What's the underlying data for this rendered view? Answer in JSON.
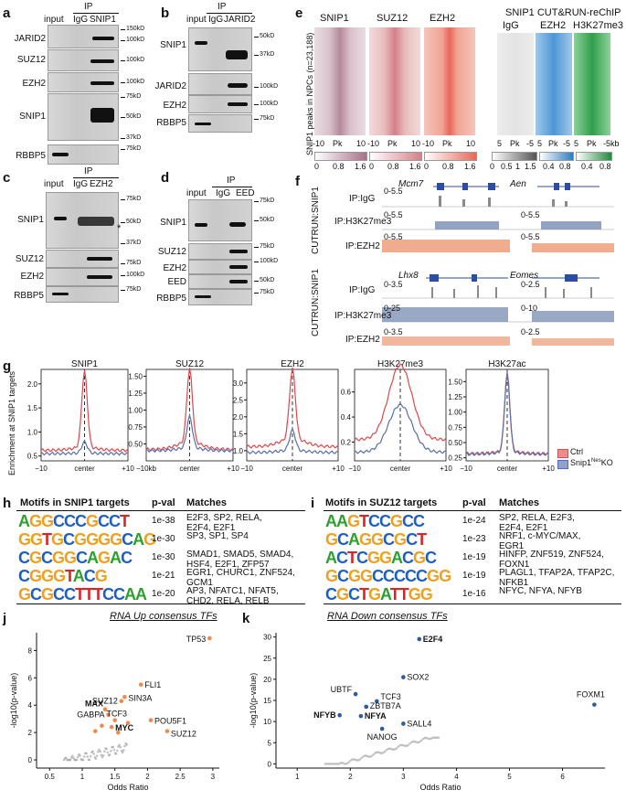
{
  "panels": {
    "a": "a",
    "b": "b",
    "c": "c",
    "d": "d",
    "e": "e",
    "f": "f",
    "g": "g",
    "h": "h",
    "i": "i",
    "j": "j",
    "k": "k"
  },
  "panel_a": {
    "ip": "IP",
    "lanes": [
      "input",
      "IgG",
      "SNIP1"
    ],
    "rows": [
      "JARID2",
      "SUZ12",
      "EZH2",
      "SNIP1",
      "RBBP5"
    ],
    "markers": [
      "150kD",
      "100kD",
      "100kD",
      "100kD",
      "75kD",
      "50kD",
      "37kD",
      "75kD"
    ]
  },
  "panel_b": {
    "ip": "IP",
    "lanes": [
      "input",
      "IgG",
      "JARID2"
    ],
    "rows": [
      "SNIP1",
      "JARID2",
      "EZH2",
      "RBBP5"
    ],
    "markers": [
      "50kD",
      "37kD",
      "100kD",
      "100kD",
      "75kD"
    ]
  },
  "panel_c": {
    "ip": "IP",
    "lanes": [
      "input",
      "IgG",
      "EZH2"
    ],
    "rows": [
      "SNIP1",
      "SUZ12",
      "EZH2",
      "RBBP5"
    ],
    "markers": [
      "75kD",
      "50kD",
      "37kD",
      "75kD",
      "100kD",
      "75kD"
    ],
    "star": "*"
  },
  "panel_d": {
    "ip": "IP",
    "lanes": [
      "input",
      "IgG",
      "EED"
    ],
    "rows": [
      "SNIP1",
      "SUZ12",
      "EZH2",
      "EED",
      "RBBP5"
    ],
    "markers": [
      "75kD",
      "50kD",
      "75kD",
      "100kD",
      "50kD",
      "75kD"
    ]
  },
  "panel_e": {
    "ylabel": "SNIP1 peaks in NPCs (n=23,188)",
    "cutrun_title": "SNIP1 CUT&RUN-reChIP",
    "heatmaps": [
      "SNIP1",
      "SUZ12",
      "EZH2",
      "IgG",
      "EZH2",
      "H3K27me3"
    ],
    "axis1": [
      "-10",
      "Pk",
      "10"
    ],
    "axis2": [
      "-10",
      "Pk",
      "10"
    ],
    "axis3": [
      "-10",
      "Pk",
      "10"
    ],
    "axis4": [
      "5",
      "Pk",
      "-5"
    ],
    "axis5": [
      "5",
      "Pk",
      "-5"
    ],
    "axis6": [
      "5",
      "Pk",
      "-5kb"
    ],
    "scale1": [
      "0",
      "0.8",
      "1.6"
    ],
    "scale2": [
      "0",
      "0.8",
      "1.6"
    ],
    "scale3": [
      "0",
      "0.8",
      "1.6"
    ],
    "scale4": [
      "0",
      "0.5",
      "1",
      "1.5"
    ],
    "scale5": [
      "0.4",
      "0.8"
    ],
    "scale6": [
      "0.4",
      "0.8"
    ]
  },
  "panel_f": {
    "side": "CUTRUN:SNIP1",
    "genes_top": [
      "Mcm7",
      "Aen"
    ],
    "genes_bot": [
      "Lhx8",
      "Eomes"
    ],
    "tracks": [
      "IP:IgG",
      "IP:H3K27me3",
      "IP:EZH2"
    ],
    "top_ranges": [
      "0-5.5",
      "0-5.5",
      "0-5.5",
      "0-5.5",
      "0-5.5"
    ],
    "bot_ranges": [
      "0-3.5",
      "0-2.5",
      "0-25",
      "0-10",
      "0-3.5",
      "0-2.5"
    ]
  },
  "panel_g": {
    "ylabel": "Enrichment at SNIP1 targets",
    "center": "center",
    "plots": [
      {
        "title": "SNIP1",
        "yticks": [
          "0.5",
          "1.0",
          "1.5",
          "2.0"
        ],
        "x": [
          "−10",
          "center",
          "+10"
        ]
      },
      {
        "title": "SUZ12",
        "yticks": [
          "0.50",
          "0.75",
          "1.00",
          "1.25",
          "1.50"
        ],
        "x": [
          "−10kb",
          "center",
          "+10"
        ]
      },
      {
        "title": "EZH2",
        "yticks": [
          "1.0",
          "1.5",
          "2.0",
          "2.5",
          "3.0"
        ],
        "x": [
          "−10",
          "center",
          "+10"
        ]
      },
      {
        "title": "H3K27me3",
        "yticks": [
          "0.2",
          "0.4",
          "0.6"
        ],
        "x": [
          "−10",
          "center",
          "+10"
        ]
      },
      {
        "title": "H3K27ac",
        "yticks": [
          "0.25",
          "0.50",
          "0.75",
          "1.00",
          "1.25",
          "1.50"
        ],
        "x": [
          "−10",
          "center",
          "+10"
        ]
      }
    ],
    "legend": {
      "ctrl": "Ctrl",
      "ko_pre": "Snip1",
      "ko_sup": "Nes",
      "ko_post": "KO"
    },
    "colors": {
      "ctrl": "#e0474c",
      "ko": "#5a6fa8"
    }
  },
  "panel_h": {
    "title": "Motifs in SNIP1 targets",
    "col_p": "p-val",
    "col_m": "Matches",
    "rows": [
      {
        "motif": "AGGCCCGCCT",
        "p": "1e-38",
        "m1": "E2F3, SP2, RELA,",
        "m2": "E2F4, E2F1"
      },
      {
        "motif": "GGTGCGGGGCAG",
        "p": "1e-30",
        "m1": "SP3, SP1, SP4",
        "m2": ""
      },
      {
        "motif": "CGCGGCAGAC",
        "p": "1e-30",
        "m1": "SMAD1, SMAD5, SMAD4,",
        "m2": "HSF4, E2F1, ZFP57"
      },
      {
        "motif": "CGGGTACG",
        "p": "1e-21",
        "m1": "EGR1, CHURC1, ZNF524,",
        "m2": "GCM1"
      },
      {
        "motif": "GCGCCTTTCCAA",
        "p": "1e-20",
        "m1": "AP3, NFATC1, NFAT5,",
        "m2": "CHD2, RELA, RELB"
      }
    ]
  },
  "panel_i": {
    "title": "Motifs in SUZ12 targets",
    "col_p": "p-val",
    "col_m": "Matches",
    "rows": [
      {
        "motif": "AAGTCCGCC",
        "p": "1e-24",
        "m1": "SP2, RELA, E2F3,",
        "m2": "E2F4, E2F1"
      },
      {
        "motif": "GCAGGCGCT",
        "p": "1e-23",
        "m1": "NRF1, c-MYC/MAX,",
        "m2": "EGR1"
      },
      {
        "motif": "ACTCGGACGC",
        "p": "1e-19",
        "m1": "HINFP, ZNF519, ZNF524,",
        "m2": "FOXN1"
      },
      {
        "motif": "GCGGCCCCCGG",
        "p": "1e-19",
        "m1": "PLAGL1, TFAP2A, TFAP2C,",
        "m2": "NFKB1"
      },
      {
        "motif": "CGCTGATTGG",
        "p": "1e-16",
        "m1": "NFYC, NFYA, NFYB",
        "m2": ""
      }
    ]
  },
  "panel_j": {
    "title": "RNA Up consensus TFs",
    "xlabel": "Odds Ratio",
    "ylabel": "-log10(p-value)",
    "xticks": [
      "0.5",
      "1",
      "1.5",
      "2",
      "2.5",
      "3"
    ],
    "yticks": [
      "0",
      "2",
      "4",
      "6",
      "8"
    ],
    "color": "#f08a4b",
    "labels": [
      {
        "t": "TP53",
        "b": false
      },
      {
        "t": "SUZ12",
        "b": false
      },
      {
        "t": "FLI1",
        "b": false
      },
      {
        "t": "SIN3A",
        "b": false
      },
      {
        "t": "MAX",
        "b": true
      },
      {
        "t": "GABPA",
        "b": false
      },
      {
        "t": "TCF3",
        "b": false
      },
      {
        "t": "MYC",
        "b": true
      },
      {
        "t": "POU5F1",
        "b": false
      },
      {
        "t": "SUZ12",
        "b": false
      }
    ]
  },
  "panel_k": {
    "title": "RNA Down consensus TFs",
    "xlabel": "Odds Ratio",
    "ylabel": "-log10(p-value)",
    "xticks": [
      "1",
      "2",
      "3",
      "4",
      "5",
      "6"
    ],
    "yticks": [
      "0",
      "5",
      "10",
      "15",
      "20",
      "25",
      "30"
    ],
    "color": "#2f5b9e",
    "labels": [
      {
        "t": "E2F4",
        "b": true
      },
      {
        "t": "SOX2",
        "b": false
      },
      {
        "t": "UBTF",
        "b": false
      },
      {
        "t": "TCF3",
        "b": false
      },
      {
        "t": "ZBTB7A",
        "b": false
      },
      {
        "t": "NFYB",
        "b": true
      },
      {
        "t": "NFYA",
        "b": true
      },
      {
        "t": "SALL4",
        "b": false
      },
      {
        "t": "NANOG",
        "b": false
      },
      {
        "t": "FOXM1",
        "b": false
      }
    ]
  },
  "chart_data": [
    {
      "type": "line",
      "title": "SNIP1",
      "x": [
        -10,
        -5,
        0,
        5,
        10
      ],
      "series": [
        {
          "name": "Ctrl",
          "values": [
            0.62,
            0.72,
            2.2,
            0.72,
            0.62
          ]
        },
        {
          "name": "Snip1 Nes KO",
          "values": [
            0.55,
            0.57,
            0.78,
            0.57,
            0.55
          ]
        }
      ],
      "ylim": [
        0.4,
        2.3
      ]
    },
    {
      "type": "line",
      "title": "SUZ12",
      "x": [
        -10,
        -5,
        0,
        5,
        10
      ],
      "series": [
        {
          "name": "Ctrl",
          "values": [
            0.42,
            0.6,
            1.5,
            0.6,
            0.42
          ]
        },
        {
          "name": "Snip1 Nes KO",
          "values": [
            0.4,
            0.47,
            0.86,
            0.47,
            0.4
          ]
        }
      ],
      "ylim": [
        0.25,
        1.6
      ]
    },
    {
      "type": "line",
      "title": "EZH2",
      "x": [
        -10,
        -5,
        0,
        5,
        10
      ],
      "series": [
        {
          "name": "Ctrl",
          "values": [
            1.12,
            1.5,
            3.2,
            1.5,
            1.12
          ]
        },
        {
          "name": "Snip1 Nes KO",
          "values": [
            0.95,
            1.05,
            1.55,
            1.05,
            0.95
          ]
        }
      ],
      "ylim": [
        0.7,
        3.4
      ]
    },
    {
      "type": "line",
      "title": "H3K27me3",
      "x": [
        -10,
        -5,
        0,
        5,
        10
      ],
      "series": [
        {
          "name": "Ctrl",
          "values": [
            0.22,
            0.38,
            0.72,
            0.38,
            0.22
          ]
        },
        {
          "name": "Snip1 Nes KO",
          "values": [
            0.12,
            0.2,
            0.45,
            0.2,
            0.12
          ]
        }
      ],
      "ylim": [
        0.05,
        0.78
      ]
    },
    {
      "type": "line",
      "title": "H3K27ac",
      "x": [
        -10,
        -5,
        0,
        5,
        10
      ],
      "series": [
        {
          "name": "Ctrl",
          "values": [
            0.32,
            0.38,
            1.6,
            0.38,
            0.32
          ]
        },
        {
          "name": "Snip1 Nes KO",
          "values": [
            0.31,
            0.37,
            1.58,
            0.37,
            0.31
          ]
        }
      ],
      "ylim": [
        0.2,
        1.7
      ]
    },
    {
      "type": "scatter",
      "title": "RNA Up consensus TFs",
      "xlabel": "Odds Ratio",
      "ylabel": "-log10(p-value)",
      "xlim": [
        0.3,
        3.1
      ],
      "ylim": [
        -0.6,
        9.3
      ],
      "points": [
        {
          "x": 2.95,
          "y": 8.9
        },
        {
          "x": 1.6,
          "y": 4.3
        },
        {
          "x": 1.9,
          "y": 5.5
        },
        {
          "x": 1.65,
          "y": 4.6
        },
        {
          "x": 1.35,
          "y": 3.7
        },
        {
          "x": 1.4,
          "y": 3.3
        },
        {
          "x": 1.5,
          "y": 2.9
        },
        {
          "x": 1.45,
          "y": 2.4
        },
        {
          "x": 2.05,
          "y": 2.9
        },
        {
          "x": 2.3,
          "y": 2.1
        },
        {
          "x": 1.7,
          "y": 2.7
        },
        {
          "x": 1.3,
          "y": 2.5
        },
        {
          "x": 1.2,
          "y": 2.1
        },
        {
          "x": 1.55,
          "y": 2.0
        }
      ]
    },
    {
      "type": "scatter",
      "title": "RNA Down consensus TFs",
      "xlabel": "Odds Ratio",
      "ylabel": "-log10(p-value)",
      "xlim": [
        0.6,
        6.8
      ],
      "ylim": [
        -1,
        31
      ],
      "points": [
        {
          "x": 3.3,
          "y": 29.5
        },
        {
          "x": 3.0,
          "y": 20.5
        },
        {
          "x": 2.1,
          "y": 16.5
        },
        {
          "x": 2.5,
          "y": 14.8
        },
        {
          "x": 2.3,
          "y": 13.5
        },
        {
          "x": 1.8,
          "y": 11.5
        },
        {
          "x": 2.2,
          "y": 11.3
        },
        {
          "x": 3.0,
          "y": 9.5
        },
        {
          "x": 2.6,
          "y": 8.3
        },
        {
          "x": 6.6,
          "y": 14.0
        }
      ]
    }
  ]
}
